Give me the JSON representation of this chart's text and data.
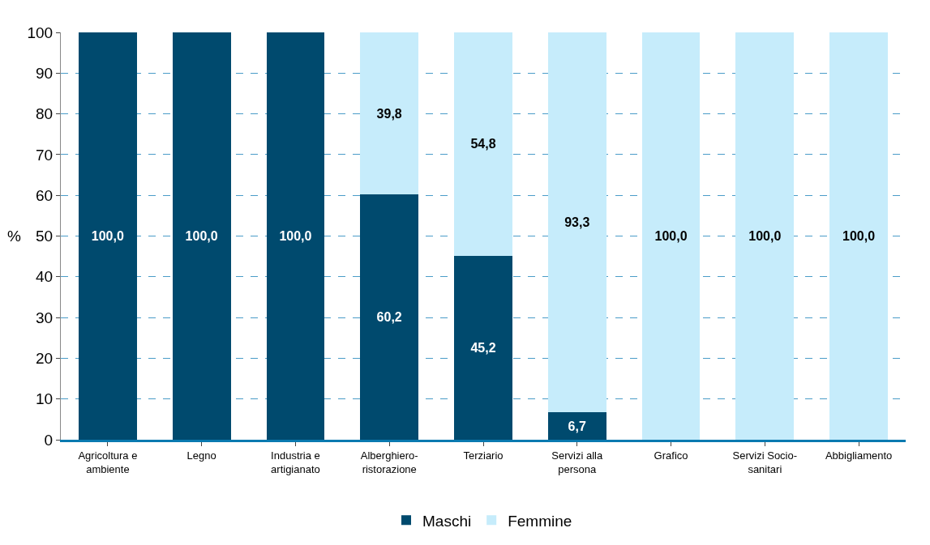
{
  "chart_data": {
    "type": "bar",
    "stacked": true,
    "ylabel": "%",
    "categories": [
      "Agricoltura e ambiente",
      "Legno",
      "Industria e artigianato",
      "Alberghiero-ristorazione",
      "Terziario",
      "Servizi alla persona",
      "Grafico",
      "Servizi Socio-sanitari",
      "Abbigliamento"
    ],
    "series": [
      {
        "name": "Maschi",
        "color": "#004a6e",
        "values": [
          100,
          100,
          100,
          60.2,
          45.2,
          6.7,
          0,
          0,
          0
        ],
        "value_labels": [
          "100,0",
          "100,0",
          "100,0",
          "60,2",
          "45,2",
          "6,7",
          null,
          null,
          null
        ]
      },
      {
        "name": "Femmine",
        "color": "#c6ecfb",
        "values": [
          0,
          0,
          0,
          39.8,
          54.8,
          93.3,
          100,
          100,
          100
        ],
        "value_labels": [
          null,
          null,
          null,
          "39,8",
          "54,8",
          "93,3",
          "100,0",
          "100,0",
          "100,0"
        ]
      }
    ],
    "ylim": [
      0,
      100
    ],
    "yticks": [
      0,
      10,
      20,
      30,
      40,
      50,
      60,
      70,
      80,
      90,
      100
    ],
    "grid": "y",
    "legend": "bottom"
  }
}
